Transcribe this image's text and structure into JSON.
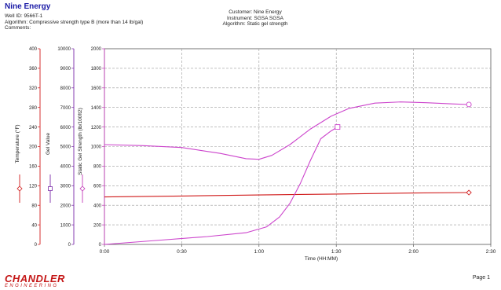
{
  "report": {
    "title": "Nine Energy",
    "well_id": "Well ID: 9566T-1",
    "algorithm_left": "Algorithm: Compressive strength type B (more than 14 lb/gal)",
    "comments": "Comments:",
    "customer": "Customer: Nine Energy",
    "instrument": "Instrument: SGSA SGSA",
    "algorithm_right": "Algorithm: Static gel strength",
    "logo_main": "CHANDLER",
    "logo_sub": "ENGINEERING",
    "page": "Page 1"
  },
  "chart_data": {
    "type": "line",
    "xlabel": "Time (HH:MM)",
    "x_unit": "minutes",
    "xlim": [
      0,
      150
    ],
    "x_ticks": [
      0,
      30,
      60,
      90,
      120,
      150
    ],
    "x_tick_labels": [
      "0:00",
      "0:30",
      "1:00",
      "1:30",
      "2:00",
      "2:30"
    ],
    "grid": true,
    "axes": [
      {
        "key": "temp",
        "label": "Temperature (°F)",
        "ylim": [
          0,
          400
        ],
        "ticks": [
          0,
          40,
          80,
          120,
          160,
          200,
          240,
          280,
          320,
          360,
          400
        ],
        "color": "#d01a1a"
      },
      {
        "key": "gel",
        "label": "Gel Value",
        "ylim": [
          0,
          10000
        ],
        "ticks": [
          0,
          1000,
          2000,
          3000,
          4000,
          5000,
          6000,
          7000,
          8000,
          9000,
          10000
        ],
        "color": "#7a2aa8"
      },
      {
        "key": "sgs",
        "label": "Static Gel Strength (lb/100ft2)",
        "ylim": [
          0,
          2000
        ],
        "ticks": [
          0,
          200,
          400,
          600,
          800,
          1000,
          1200,
          1400,
          1600,
          1800,
          2000
        ],
        "color": "#c23ab8"
      }
    ],
    "series": [
      {
        "axis": "temp",
        "color": "#d01a1a",
        "marker": "diamond",
        "x": [
          0,
          30,
          60,
          90,
          120,
          141.5
        ],
        "y": [
          97,
          99,
          101,
          103,
          105,
          106
        ]
      },
      {
        "axis": "gel",
        "color": "#cc44cc",
        "marker": "circle",
        "x": [
          0,
          15,
          30,
          45,
          55,
          60,
          65,
          72,
          80,
          88,
          95,
          105,
          115,
          125,
          135,
          141.5
        ],
        "y": [
          5100,
          5050,
          4950,
          4650,
          4380,
          4350,
          4550,
          5100,
          5900,
          6550,
          6950,
          7220,
          7280,
          7240,
          7180,
          7150
        ]
      },
      {
        "axis": "sgs",
        "color": "#cc44cc",
        "marker": "square",
        "x": [
          0,
          20,
          40,
          55,
          63,
          68,
          72,
          76,
          80,
          84,
          88,
          90.5
        ],
        "y": [
          0,
          40,
          80,
          120,
          180,
          280,
          420,
          620,
          860,
          1080,
          1160,
          1200
        ]
      }
    ]
  }
}
